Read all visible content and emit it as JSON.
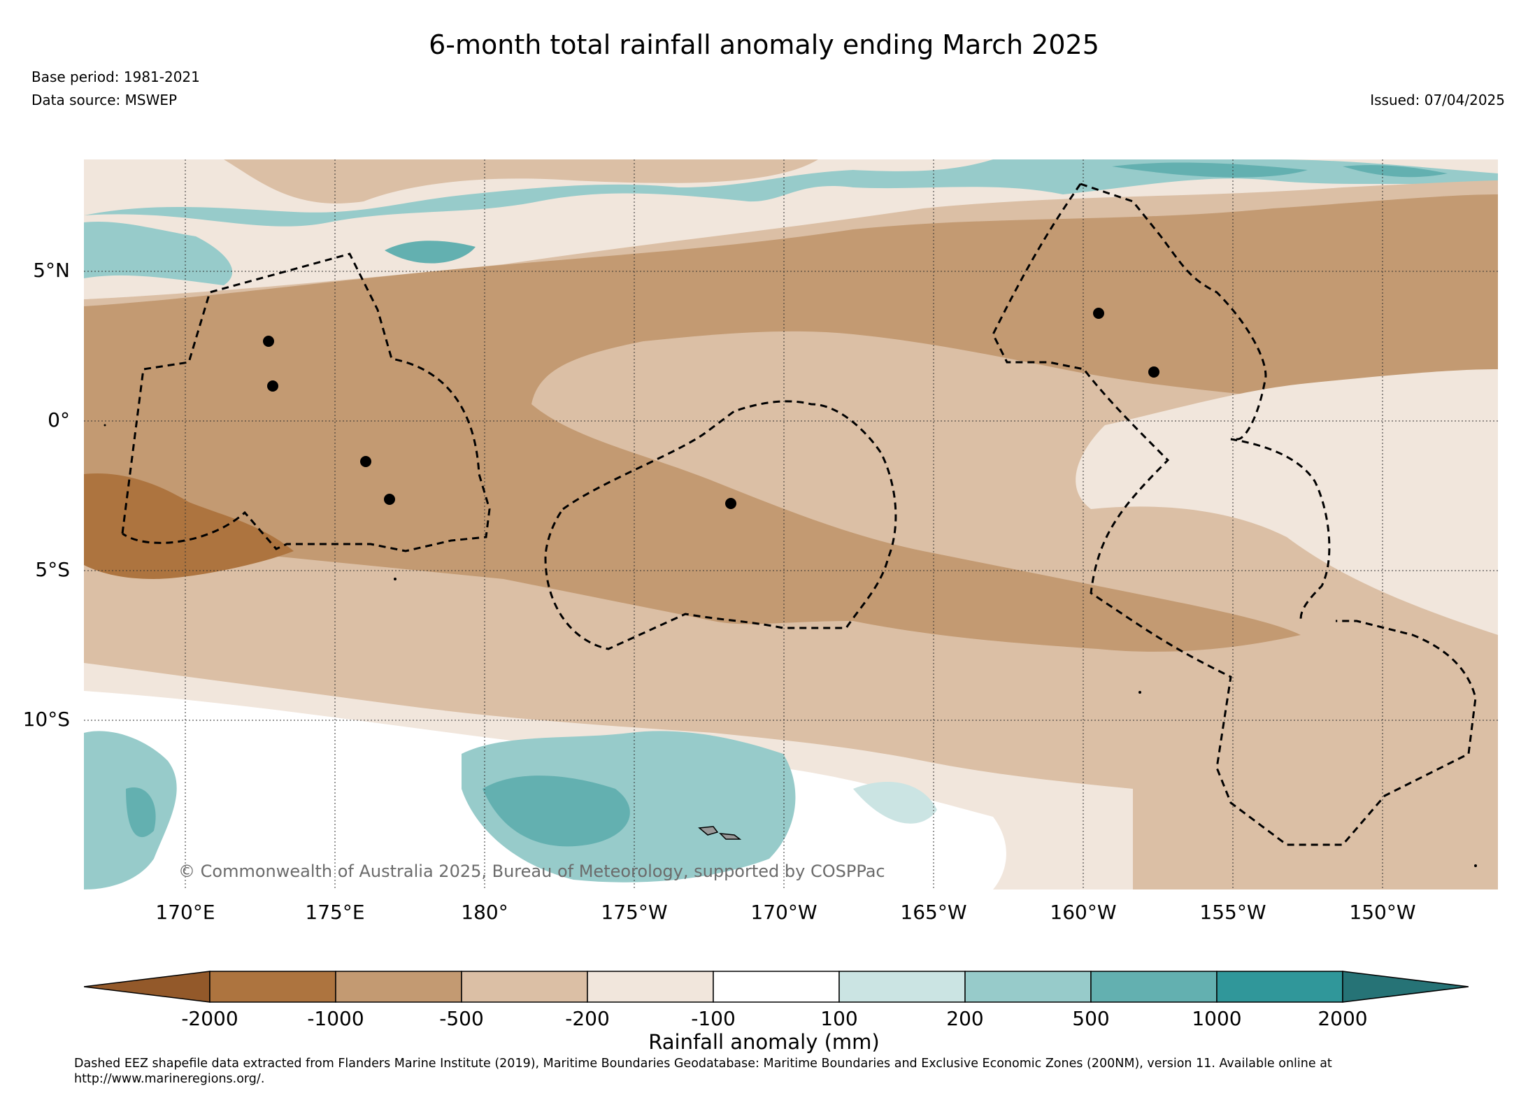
{
  "title": "6-month total rainfall anomaly ending March 2025",
  "base_period": "Base period: 1981-2021",
  "data_source": "Data source: MSWEP",
  "issued": "Issued: 07/04/2025",
  "map": {
    "lat_labels": [
      "5°N",
      "0°",
      "5°S",
      "10°S"
    ],
    "lon_labels": [
      "170°E",
      "175°E",
      "180°",
      "175°W",
      "170°W",
      "165°W",
      "160°W",
      "155°W",
      "150°W"
    ],
    "credit": "© Commonwealth of Australia 2025, Bureau of Meteorology, supported by COSPPac",
    "islands_marked": 8,
    "eez_boundaries": "dashed"
  },
  "colorbar": {
    "label": "Rainfall anomaly (mm)",
    "ticks": [
      "-2000",
      "-1000",
      "-500",
      "-200",
      "-100",
      "100",
      "200",
      "500",
      "1000",
      "2000"
    ],
    "colors": [
      "#93592a",
      "#ad743f",
      "#c39a72",
      "#dbbfa5",
      "#f1e6dc",
      "#ffffff",
      "#cbe4e3",
      "#97cbca",
      "#63b0b0",
      "#30979a",
      "#267376"
    ]
  },
  "footnote": "Dashed EEZ shapefile data extracted from Flanders Marine Institute (2019), Maritime Boundaries Geodatabase: Maritime Boundaries and Exclusive Economic Zones (200NM), version 11. Available online at http://www.marineregions.org/."
}
